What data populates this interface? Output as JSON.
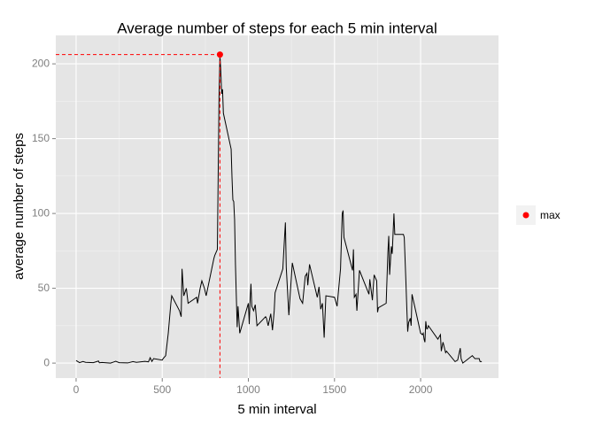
{
  "chart_data": {
    "type": "line",
    "title": "Average number of steps for each 5 min interval",
    "x_label": "5 min interval",
    "y_label": "average number of steps",
    "x": [
      0,
      20,
      40,
      55,
      100,
      130,
      135,
      150,
      200,
      230,
      250,
      300,
      330,
      350,
      400,
      420,
      430,
      440,
      450,
      500,
      505,
      520,
      535,
      550,
      555,
      600,
      610,
      615,
      625,
      640,
      650,
      700,
      705,
      720,
      730,
      745,
      755,
      800,
      805,
      820,
      830,
      835,
      840,
      845,
      850,
      855,
      900,
      905,
      910,
      915,
      920,
      925,
      930,
      935,
      940,
      950,
      1000,
      1005,
      1010,
      1015,
      1020,
      1030,
      1040,
      1050,
      1100,
      1105,
      1115,
      1130,
      1140,
      1150,
      1155,
      1200,
      1210,
      1215,
      1220,
      1235,
      1255,
      1300,
      1315,
      1330,
      1340,
      1345,
      1355,
      1400,
      1410,
      1420,
      1430,
      1440,
      1450,
      1500,
      1515,
      1535,
      1545,
      1550,
      1555,
      1605,
      1610,
      1615,
      1625,
      1630,
      1645,
      1700,
      1705,
      1720,
      1730,
      1745,
      1750,
      1755,
      1800,
      1810,
      1815,
      1820,
      1830,
      1835,
      1845,
      1850,
      1900,
      1905,
      1915,
      1920,
      1925,
      1930,
      1940,
      1945,
      1950,
      2000,
      2010,
      2015,
      2020,
      2025,
      2030,
      2035,
      2040,
      2045,
      2100,
      2115,
      2120,
      2130,
      2145,
      2150,
      2200,
      2215,
      2230,
      2235,
      2245,
      2300,
      2315,
      2330,
      2340,
      2345,
      2355
    ],
    "values": [
      1.7,
      0.3,
      1.1,
      0.5,
      0.3,
      1.4,
      0.2,
      0.4,
      0.0,
      1.2,
      0.3,
      0.1,
      1.0,
      0.5,
      1.2,
      0.8,
      3.6,
      1.1,
      3.0,
      2.0,
      3.0,
      5.0,
      20,
      40,
      45,
      35,
      31,
      63,
      45,
      50,
      40,
      44,
      40,
      50,
      55,
      50,
      45,
      70,
      72,
      76,
      180,
      206,
      195,
      180,
      183,
      167,
      143,
      124,
      109,
      108,
      96,
      66,
      45,
      24,
      38,
      20,
      40,
      26,
      42,
      53,
      38,
      35,
      39,
      25,
      31,
      30,
      25,
      33,
      22,
      35,
      47,
      63,
      84,
      94,
      64,
      32,
      67,
      43,
      40,
      58,
      60,
      52,
      66,
      44,
      51,
      36,
      40,
      17,
      45,
      44,
      38,
      63,
      100,
      102,
      84,
      62,
      76,
      44,
      46,
      35,
      62,
      46,
      56,
      42,
      59,
      55,
      34,
      37,
      40,
      74,
      85,
      59,
      78,
      73,
      100,
      86,
      86,
      84,
      53,
      36,
      21,
      27,
      30,
      25,
      46,
      20,
      19,
      20,
      16,
      14,
      28,
      23,
      23,
      25,
      16,
      19,
      8,
      14,
      7,
      8,
      1,
      2,
      10,
      3,
      0,
      5,
      3,
      3,
      3,
      1,
      1
    ],
    "color": "#000000",
    "highlight": {
      "name": "max",
      "x": 835,
      "y": 206.2,
      "color": "#ff0000"
    },
    "xlim": [
      -118,
      2452
    ],
    "ylim": [
      -10,
      219
    ],
    "xticks": [
      0,
      500,
      1000,
      1500,
      2000
    ],
    "yticks": [
      0,
      50,
      100,
      150,
      200
    ],
    "grid": true,
    "legend": "right"
  }
}
